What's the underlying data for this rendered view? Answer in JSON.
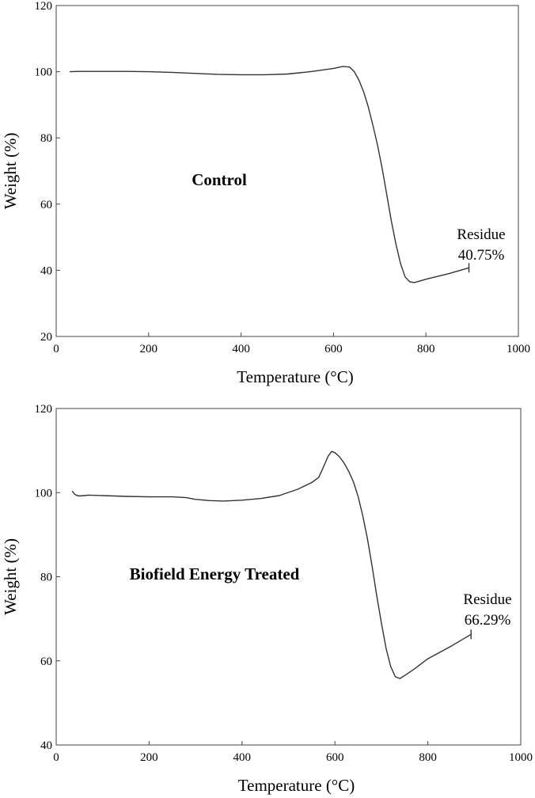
{
  "chart_data": [
    {
      "type": "line",
      "annotation": "Control",
      "xlabel": "Temperature (°C)",
      "ylabel": "Weight (%)",
      "xlim": [
        0,
        1000
      ],
      "ylim": [
        20,
        120
      ],
      "xticks": [
        "0",
        "200",
        "400",
        "600",
        "800",
        "1000"
      ],
      "yticks": [
        "20",
        "40",
        "60",
        "80",
        "100",
        "120"
      ],
      "residue_label": "Residue",
      "residue_value": "40.75%",
      "residue_point": [
        893,
        40.75
      ],
      "grid": false,
      "series": [
        {
          "x": [
            30,
            50,
            100,
            150,
            200,
            250,
            300,
            350,
            400,
            450,
            500,
            550,
            600,
            620,
            635,
            645,
            655,
            665,
            675,
            685,
            695,
            705,
            715,
            725,
            735,
            745,
            755,
            765,
            775,
            800,
            850,
            893
          ],
          "y": [
            100,
            100.1,
            100.1,
            100.1,
            100,
            99.8,
            99.5,
            99.2,
            99.1,
            99.1,
            99.3,
            100,
            101,
            101.6,
            101.4,
            100,
            97.5,
            94,
            89.5,
            84,
            78,
            71,
            63,
            55,
            48,
            42,
            38,
            36.5,
            36.3,
            37.3,
            39,
            40.75
          ]
        }
      ]
    },
    {
      "type": "line",
      "annotation": "Biofield Energy Treated",
      "xlabel": "Temperature (°C)",
      "ylabel": "Weight (%)",
      "xlim": [
        0,
        1000
      ],
      "ylim": [
        40,
        120
      ],
      "xticks": [
        "0",
        "200",
        "400",
        "600",
        "800",
        "1000"
      ],
      "yticks": [
        "40",
        "60",
        "80",
        "100",
        "120"
      ],
      "residue_label": "Residue",
      "residue_value": "66.29%",
      "residue_point": [
        893,
        66.29
      ],
      "grid": false,
      "series": [
        {
          "x": [
            35,
            40,
            45,
            50,
            60,
            70,
            100,
            150,
            200,
            250,
            280,
            300,
            330,
            360,
            400,
            440,
            480,
            520,
            550,
            565,
            575,
            585,
            593,
            600,
            610,
            620,
            630,
            640,
            650,
            660,
            670,
            680,
            690,
            700,
            710,
            720,
            730,
            740,
            750,
            770,
            800,
            850,
            893
          ],
          "y": [
            100.3,
            99.6,
            99.3,
            99.2,
            99.3,
            99.4,
            99.3,
            99.1,
            99,
            99,
            98.8,
            98.4,
            98.1,
            98,
            98.2,
            98.6,
            99.3,
            100.8,
            102.4,
            103.6,
            106,
            108.6,
            109.8,
            109.5,
            108.5,
            107,
            105,
            102.5,
            99,
            94.5,
            89,
            82.5,
            75.5,
            69,
            63,
            58.7,
            56.2,
            55.8,
            56.5,
            58,
            60.5,
            63.5,
            66.29
          ]
        }
      ]
    }
  ]
}
